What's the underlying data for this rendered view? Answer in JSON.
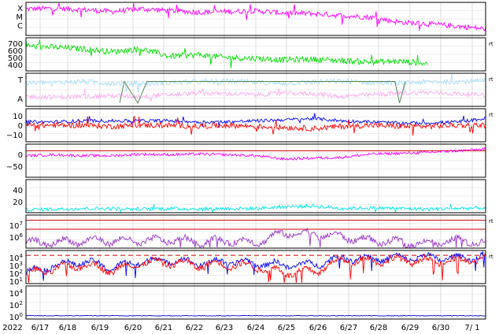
{
  "chart_data": {
    "type": "line",
    "x_labels": [
      "2022",
      "6/17",
      "6/18",
      "6/19",
      "6/20",
      "6/21",
      "6/22",
      "6/23",
      "6/24",
      "6/25",
      "6/26",
      "6/27",
      "6/28",
      "6/29",
      "6/30",
      "7/ 1"
    ],
    "x_range_days": [
      0,
      15.2
    ],
    "grid": true,
    "panels": [
      {
        "id": "xmc",
        "letters": [
          "X",
          "M",
          "C"
        ],
        "yticks": [],
        "right_marker": "",
        "series": [
          {
            "color": "#ff00ff",
            "kind": "noise",
            "base": [
              0.8,
              0.82,
              0.78,
              0.72,
              0.8,
              0.75,
              0.7,
              0.72,
              0.74,
              0.68,
              0.66,
              0.6,
              0.55,
              0.4,
              0.35,
              0.28,
              0.2
            ],
            "amp": 0.08,
            "spikes": 18
          }
        ]
      },
      {
        "id": "speed",
        "yticks": [
          "700",
          "600",
          "500",
          "400"
        ],
        "ylim": [
          300,
          750
        ],
        "right_marker": "rt",
        "series": [
          {
            "color": "#00dd00",
            "kind": "noise",
            "base": [
              640,
              620,
              600,
              560,
              600,
              500,
              520,
              480,
              470,
              450,
              460,
              440,
              420,
              430,
              400,
              null,
              380
            ],
            "amp": 40,
            "spikes": 10
          }
        ]
      },
      {
        "id": "ta",
        "letters": [
          "T",
          "A"
        ],
        "yticks": [],
        "right_marker": "rt",
        "series": [
          {
            "color": "#aaddff",
            "kind": "noise",
            "base": [
              0.7,
              0.72,
              0.75,
              0.7,
              0.68,
              0.72,
              0.74,
              0.76,
              0.72,
              0.7,
              0.74,
              0.76,
              0.72,
              0.7,
              0.74,
              0.75,
              0.76
            ],
            "amp": 0.08,
            "spikes": 4
          },
          {
            "color": "#ffaaee",
            "kind": "noise",
            "base": [
              0.3,
              0.28,
              0.3,
              0.32,
              0.3,
              0.35,
              0.4,
              0.38,
              0.35,
              0.4,
              0.38,
              0.3,
              0.35,
              0.4,
              0.42,
              0.38,
              0.35
            ],
            "amp": 0.07,
            "spikes": 3
          },
          {
            "color": "#558855",
            "kind": "steps",
            "points": [
              [
                3.1,
                0.1
              ],
              [
                3.25,
                0.75
              ],
              [
                3.7,
                0.1
              ],
              [
                4.0,
                0.75
              ],
              [
                12.2,
                0.75
              ],
              [
                12.35,
                0.1
              ],
              [
                12.55,
                0.75
              ]
            ]
          }
        ]
      },
      {
        "id": "bfield",
        "yticks": [
          "10",
          "0",
          "−10"
        ],
        "ylim": [
          -15,
          15
        ],
        "right_marker": "rt",
        "series": [
          {
            "color": "#0000ff",
            "kind": "noise",
            "base": [
              3,
              3,
              4,
              4,
              4,
              4,
              3,
              3,
              4,
              5,
              6,
              4,
              3,
              2,
              2,
              3,
              6
            ],
            "amp": 1.5,
            "spikes": 8
          },
          {
            "color": "#ff0000",
            "kind": "noise",
            "base": [
              0,
              0,
              0,
              -1,
              0,
              0,
              -1,
              0,
              -1,
              -2,
              -3,
              -1,
              0,
              -1,
              -1,
              0,
              0
            ],
            "amp": 2.5,
            "spikes": 14
          }
        ]
      },
      {
        "id": "angle",
        "yticks": [
          "0",
          "−50"
        ],
        "ylim": [
          -80,
          20
        ],
        "right_marker": "",
        "refline": {
          "color": "#cc0000",
          "value": 0
        },
        "series": [
          {
            "color": "#ff00ff",
            "kind": "noise",
            "base": [
              -15,
              -12,
              -15,
              -15,
              -10,
              -12,
              -10,
              -12,
              -15,
              -25,
              -22,
              -20,
              -10,
              -8,
              -5,
              0,
              5
            ],
            "amp": 4,
            "spikes": 0
          }
        ]
      },
      {
        "id": "temp",
        "yticks": [
          "40",
          "20"
        ],
        "ylim": [
          0,
          55
        ],
        "right_marker": "",
        "series": [
          {
            "color": "#00e5e5",
            "kind": "noise",
            "base": [
              5,
              6,
              7,
              7,
              6,
              7,
              6,
              7,
              7,
              10,
              11,
              7,
              8,
              7,
              6,
              7,
              8
            ],
            "amp": 3,
            "spikes": 8
          }
        ]
      },
      {
        "id": "flux1",
        "yticks": [
          "10^7",
          "10^6"
        ],
        "ylim": [
          4,
          7.5
        ],
        "right_marker": "rt",
        "refline": {
          "color": "#cc0000",
          "value": 6.95
        },
        "refline2": {
          "color": "#cc0000",
          "value": 6.0
        },
        "series": [
          {
            "color": "#9933cc",
            "kind": "bumps",
            "base": [
              4.5,
              4.6,
              4.8,
              4.8,
              4.7,
              4.9,
              4.7,
              4.8,
              4.6,
              5.6,
              5.5,
              5.2,
              4.8,
              4.6,
              4.5,
              4.8,
              4.6
            ],
            "amp": 0.6
          }
        ]
      },
      {
        "id": "flux2",
        "yticks": [
          "10^4",
          "10^3",
          "10^2",
          "10^1"
        ],
        "ylim": [
          0,
          4.5
        ],
        "right_marker": "rt",
        "refline": {
          "color": "#cc0000",
          "value": 3.85,
          "dashed": true
        },
        "series": [
          {
            "color": "#0000ff",
            "kind": "bumps",
            "base": [
              1.5,
              2.5,
              3,
              2.2,
              3,
              3.2,
              2.8,
              3,
              2.8,
              2.5,
              2.6,
              3.5,
              3.4,
              3.5,
              3.6,
              3.4,
              3.8
            ],
            "amp": 0.7
          },
          {
            "color": "#ff0000",
            "kind": "bumps",
            "base": [
              1.3,
              2.0,
              2.6,
              1.8,
              2.8,
              2.9,
              2.5,
              2.6,
              2.3,
              1.5,
              1.6,
              3.2,
              3.1,
              3.2,
              3.1,
              3.0,
              3.5
            ],
            "amp": 0.8
          }
        ]
      },
      {
        "id": "flux3",
        "yticks": [
          "10^4",
          "10^2",
          "10^0"
        ],
        "ylim": [
          -0.5,
          4.5
        ],
        "right_marker": "",
        "series": [
          {
            "color": "#0000cc",
            "kind": "noise",
            "base": [
              0,
              0,
              0,
              0,
              0,
              0,
              0,
              0,
              0,
              0,
              0,
              0,
              0,
              0,
              0,
              0,
              0
            ],
            "amp": 0.05,
            "spikes": 0
          }
        ]
      }
    ]
  }
}
